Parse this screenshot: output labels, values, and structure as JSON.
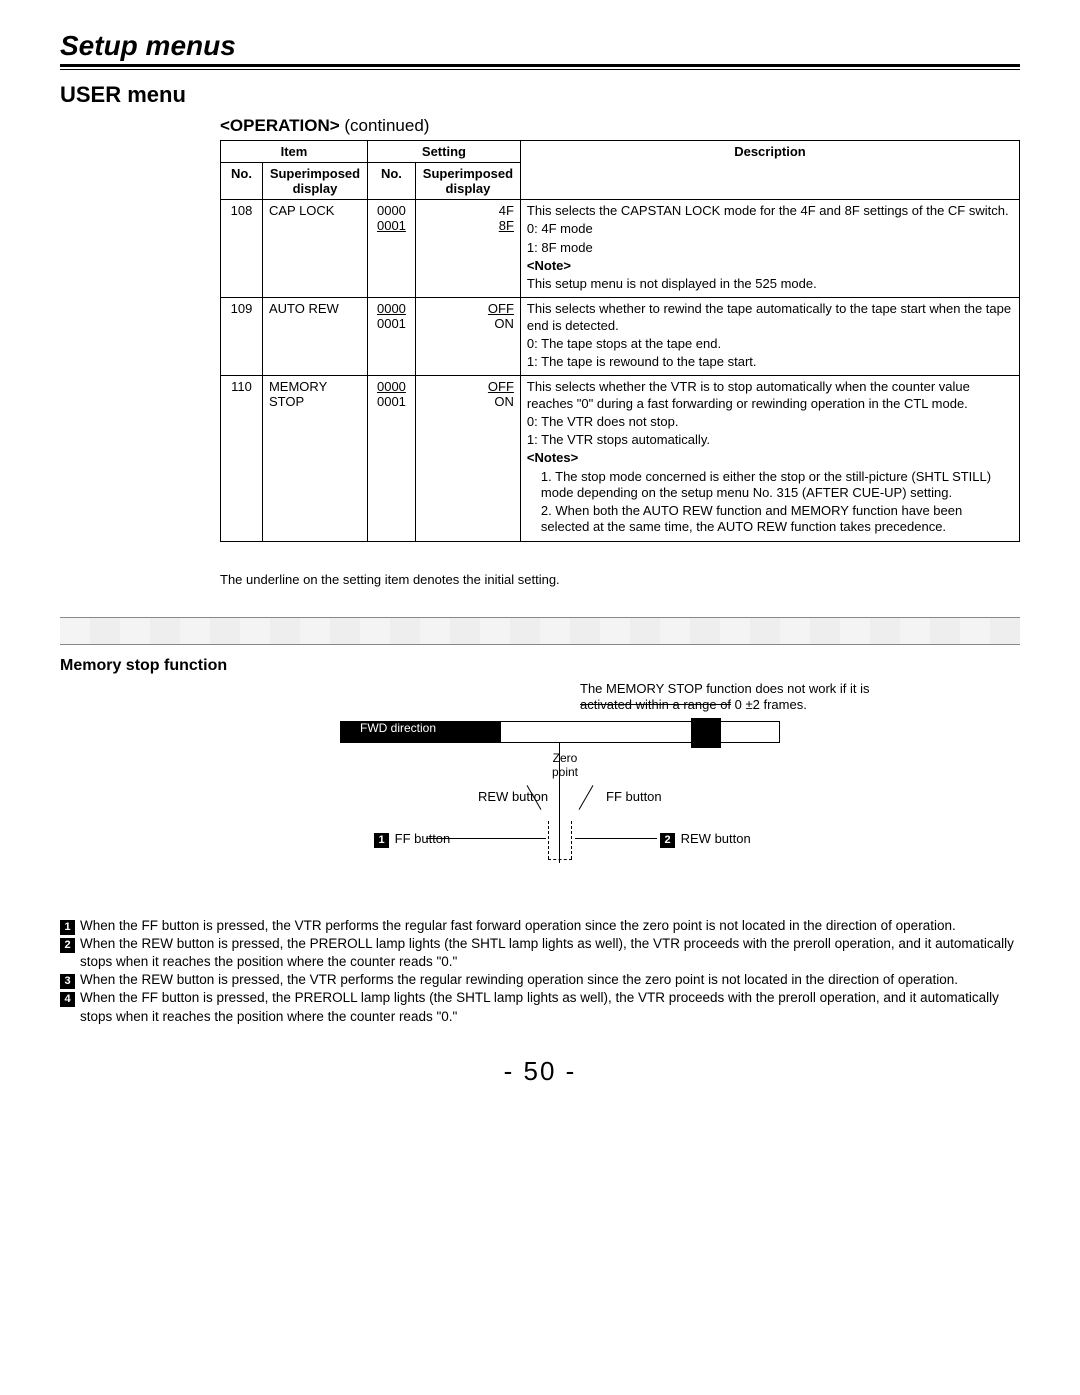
{
  "header": {
    "section_title": "Setup menus",
    "menu_title": "USER menu",
    "sub_title_tag": "<OPERATION>",
    "sub_title_suffix": "(continued)"
  },
  "table": {
    "head": {
      "item": "Item",
      "setting": "Setting",
      "no": "No.",
      "si1": "Superimposed display",
      "nno": "No.",
      "si2": "Superimposed display",
      "desc": "Description"
    },
    "rows": [
      {
        "no": "108",
        "si1": "CAP LOCK",
        "nno_u": "0000",
        "nno_2": "0001",
        "si2_1": "4F",
        "si2_u": "8F",
        "desc": [
          "This selects the CAPSTAN LOCK mode for the 4F and 8F settings of the CF switch.",
          "0: 4F mode",
          "1: 8F mode",
          "<Note>",
          "This setup menu is not displayed in the 525 mode."
        ]
      },
      {
        "no": "109",
        "si1": "AUTO REW",
        "nno_u": "0000",
        "nno_2": "0001",
        "si2_u": "OFF",
        "si2_2": "ON",
        "desc": [
          "This selects whether to rewind the tape automatically to the tape start when the tape end is detected.",
          "0: The tape stops at the tape end.",
          "1: The tape is rewound to the tape start."
        ]
      },
      {
        "no": "110",
        "si1": "MEMORY STOP",
        "nno_u": "0000",
        "nno_2": "0001",
        "si2_u": "OFF",
        "si2_2": "ON",
        "desc": [
          "This selects whether the VTR is to stop automatically when the counter value reaches \"0\" during a fast forwarding or rewinding operation in the CTL mode.",
          "0: The VTR does not stop.",
          "1: The VTR stops automatically.",
          "<Notes>",
          "1. The stop mode concerned is either the stop or the still-picture (SHTL STILL) mode depending on the setup menu No. 315 (AFTER CUE-UP) setting.",
          "2. When both the AUTO REW function and MEMORY function have been selected at the same time, the AUTO REW function takes precedence."
        ]
      }
    ],
    "underline_note": "The underline on the setting item denotes the initial setting."
  },
  "memstop": {
    "title": "Memory stop function",
    "note_line1": "The MEMORY STOP function does not work if it is",
    "note_line2_strike": "activated within a range of",
    "note_line2_tail": " 0 ±2 frames.",
    "fwd_dir": "FWD direction",
    "zero": "Zero point",
    "rew_btn": "REW button",
    "ff_btn": "FF button",
    "badge1": "1",
    "badge2": "2",
    "badge3": "3",
    "badge4": "4"
  },
  "bullets": {
    "b1": "When the FF button is pressed, the VTR performs the regular fast forward operation since the zero point is not located in the direction of operation.",
    "b2": "When the REW button is pressed, the PREROLL lamp lights (the SHTL lamp lights as well), the VTR proceeds with the preroll operation, and it automatically stops when it reaches the position where the counter reads \"0.\"",
    "b3": "When the REW button is pressed, the VTR performs the regular rewinding operation since the zero point is not located in the direction of operation.",
    "b4": "When the FF button is pressed, the PREROLL lamp lights (the SHTL lamp lights as well), the VTR proceeds with the preroll operation, and it automatically stops when it reaches the position where the counter reads \"0.\""
  },
  "page_number": "- 50 -"
}
